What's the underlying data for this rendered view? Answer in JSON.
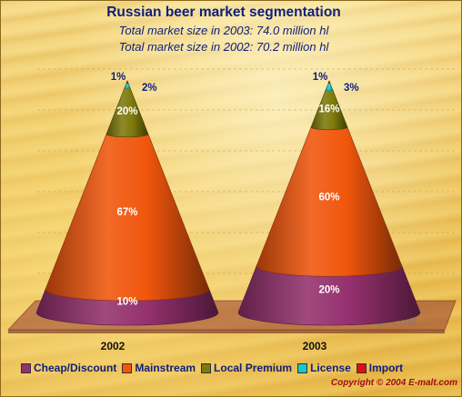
{
  "chart_data": {
    "type": "cone",
    "title": "Russian beer market segmentation",
    "subtitle_lines": [
      "Total market size in 2003: 74.0 million hl",
      "Total market size in 2002: 70.2 million hl"
    ],
    "categories": [
      "2002",
      "2003"
    ],
    "series": [
      {
        "name": "Cheap/Discount",
        "color": "#94306e",
        "values": [
          10,
          20
        ]
      },
      {
        "name": "Mainstream",
        "color": "#f0560c",
        "values": [
          67,
          60
        ]
      },
      {
        "name": "Local Premium",
        "color": "#7e7a0c",
        "values": [
          20,
          16
        ]
      },
      {
        "name": "License",
        "color": "#19c7c7",
        "values": [
          2,
          3
        ]
      },
      {
        "name": "Import",
        "color": "#e01010",
        "values": [
          1,
          1
        ]
      }
    ],
    "data_labels": [
      [
        "10%",
        "67%",
        "20%",
        "2%",
        "1%"
      ],
      [
        "20%",
        "60%",
        "16%",
        "3%",
        "1%"
      ]
    ],
    "unit": "%",
    "legend_position": "bottom"
  },
  "watermark": "E-MALT.COM",
  "copyright": "Copyright © 2004  E-malt.com"
}
